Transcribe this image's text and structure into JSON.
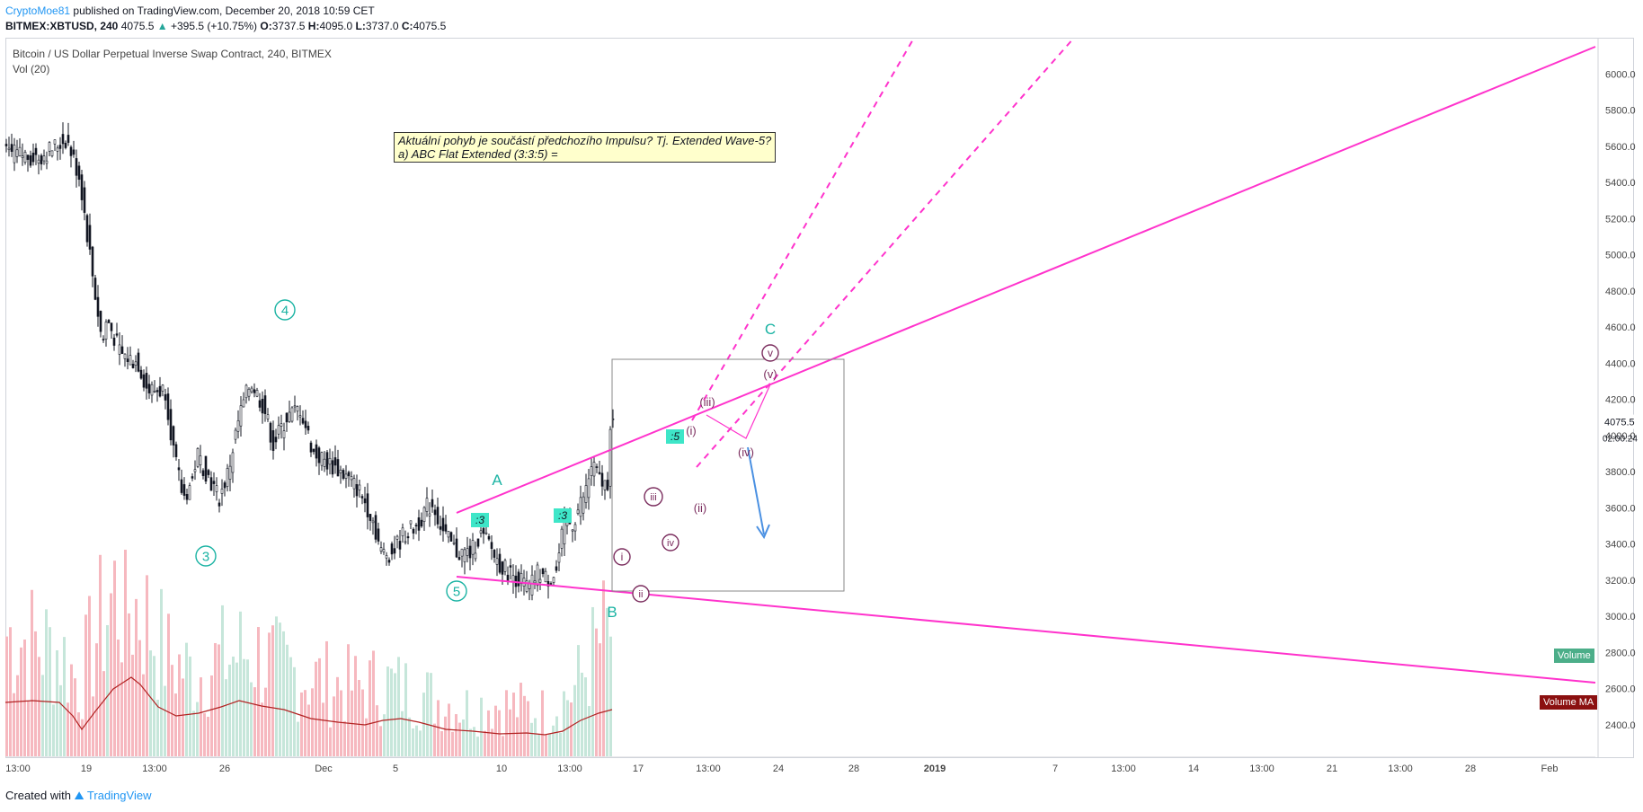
{
  "header": {
    "author": "CryptoMoe81",
    "published": "published on TradingView.com, December 20, 2018 10:59 CET"
  },
  "ticker": {
    "symbol": "BITMEX:XBTUSD, 240",
    "last": "4075.5",
    "change": "+395.5 (+10.75%)",
    "o_label": "O:",
    "o": "3737.5",
    "h_label": "H:",
    "h": "4095.0",
    "l_label": "L:",
    "l": "3737.0",
    "c_label": "C:",
    "c": "4075.5"
  },
  "chart_title": "Bitcoin / US Dollar Perpetual Inverse Swap Contract, 240, BITMEX",
  "indicator": "Vol (20)",
  "note": {
    "line1": "Aktuální pohyb je součástí předchozího Impulsu? Tj. Extended Wave-5?",
    "line2": "a) ABC Flat Extended (3:3:5) ="
  },
  "price_badge": "4075.5",
  "countdown": "02:00:24",
  "volume_badge": "Volume",
  "volume_ma_badge": "Volume MA",
  "footer": {
    "created": "Created with",
    "brand": "TradingView"
  },
  "colors": {
    "up": "#26a69a",
    "down": "#131722",
    "trend": "#ff33cc",
    "wave_teal": "#1ab3a3",
    "wave_purple": "#7b2d5e",
    "arrow": "#4a90e2",
    "vol_up": "#c6e6da",
    "vol_down": "#f6b8bf",
    "vol_ma": "#b22222"
  },
  "chart_data": {
    "type": "candlestick",
    "y_ticks": [
      2400,
      2600,
      2800,
      3000,
      3200,
      3400,
      3600,
      3800,
      4000,
      4200,
      4400,
      4600,
      4800,
      5000,
      5200,
      5400,
      5600,
      5800,
      6000
    ],
    "ylim": [
      2220,
      6200
    ],
    "x_ticks": [
      "13:00",
      "19",
      "13:00",
      "26",
      "Dec",
      "5",
      "10",
      "13:00",
      "17",
      "13:00",
      "24",
      "28",
      "2019",
      "7",
      "13:00",
      "14",
      "13:00",
      "21",
      "13:00",
      "28",
      "Feb"
    ],
    "price_path": [
      [
        0,
        5560
      ],
      [
        40,
        5540
      ],
      [
        70,
        5640
      ],
      [
        85,
        5420
      ],
      [
        100,
        4850
      ],
      [
        110,
        4500
      ],
      [
        115,
        4650
      ],
      [
        130,
        4450
      ],
      [
        150,
        4400
      ],
      [
        160,
        4250
      ],
      [
        180,
        4250
      ],
      [
        190,
        3880
      ],
      [
        200,
        3650
      ],
      [
        210,
        3750
      ],
      [
        215,
        3900
      ],
      [
        225,
        3800
      ],
      [
        240,
        3650
      ],
      [
        250,
        3800
      ],
      [
        262,
        4100
      ],
      [
        275,
        4300
      ],
      [
        290,
        4150
      ],
      [
        300,
        3950
      ],
      [
        315,
        4100
      ],
      [
        330,
        4150
      ],
      [
        345,
        3900
      ],
      [
        360,
        3850
      ],
      [
        375,
        3800
      ],
      [
        395,
        3700
      ],
      [
        410,
        3550
      ],
      [
        420,
        3350
      ],
      [
        432,
        3350
      ],
      [
        445,
        3450
      ],
      [
        460,
        3500
      ],
      [
        470,
        3600
      ],
      [
        478,
        3620
      ],
      [
        490,
        3450
      ],
      [
        505,
        3350
      ],
      [
        520,
        3350
      ],
      [
        530,
        3450
      ],
      [
        540,
        3400
      ],
      [
        550,
        3300
      ],
      [
        560,
        3250
      ],
      [
        575,
        3200
      ],
      [
        585,
        3150
      ],
      [
        595,
        3250
      ],
      [
        605,
        3200
      ],
      [
        615,
        3250
      ],
      [
        620,
        3400
      ],
      [
        625,
        3550
      ],
      [
        632,
        3500
      ],
      [
        640,
        3600
      ],
      [
        648,
        3700
      ],
      [
        655,
        3850
      ],
      [
        660,
        3780
      ],
      [
        668,
        3720
      ],
      [
        672,
        3750
      ],
      [
        675,
        4075
      ]
    ],
    "volume_path": [
      [
        0,
        150
      ],
      [
        30,
        140
      ],
      [
        60,
        130
      ],
      [
        80,
        90
      ],
      [
        100,
        150
      ],
      [
        120,
        200
      ],
      [
        150,
        180
      ],
      [
        180,
        120
      ],
      [
        210,
        100
      ],
      [
        240,
        120
      ],
      [
        270,
        130
      ],
      [
        300,
        110
      ],
      [
        330,
        100
      ],
      [
        360,
        90
      ],
      [
        390,
        85
      ],
      [
        420,
        90
      ],
      [
        450,
        80
      ],
      [
        480,
        70
      ],
      [
        510,
        60
      ],
      [
        540,
        65
      ],
      [
        570,
        60
      ],
      [
        600,
        55
      ],
      [
        630,
        80
      ],
      [
        660,
        140
      ],
      [
        675,
        160
      ]
    ],
    "volume_ma": [
      [
        0,
        60
      ],
      [
        30,
        62
      ],
      [
        60,
        60
      ],
      [
        75,
        45
      ],
      [
        85,
        30
      ],
      [
        100,
        50
      ],
      [
        120,
        75
      ],
      [
        140,
        88
      ],
      [
        150,
        80
      ],
      [
        170,
        55
      ],
      [
        190,
        45
      ],
      [
        215,
        48
      ],
      [
        240,
        55
      ],
      [
        260,
        62
      ],
      [
        285,
        56
      ],
      [
        310,
        52
      ],
      [
        340,
        42
      ],
      [
        370,
        38
      ],
      [
        400,
        35
      ],
      [
        420,
        40
      ],
      [
        440,
        42
      ],
      [
        460,
        38
      ],
      [
        490,
        30
      ],
      [
        520,
        28
      ],
      [
        550,
        25
      ],
      [
        580,
        26
      ],
      [
        600,
        24
      ],
      [
        620,
        28
      ],
      [
        640,
        40
      ],
      [
        660,
        48
      ],
      [
        675,
        52
      ]
    ]
  }
}
